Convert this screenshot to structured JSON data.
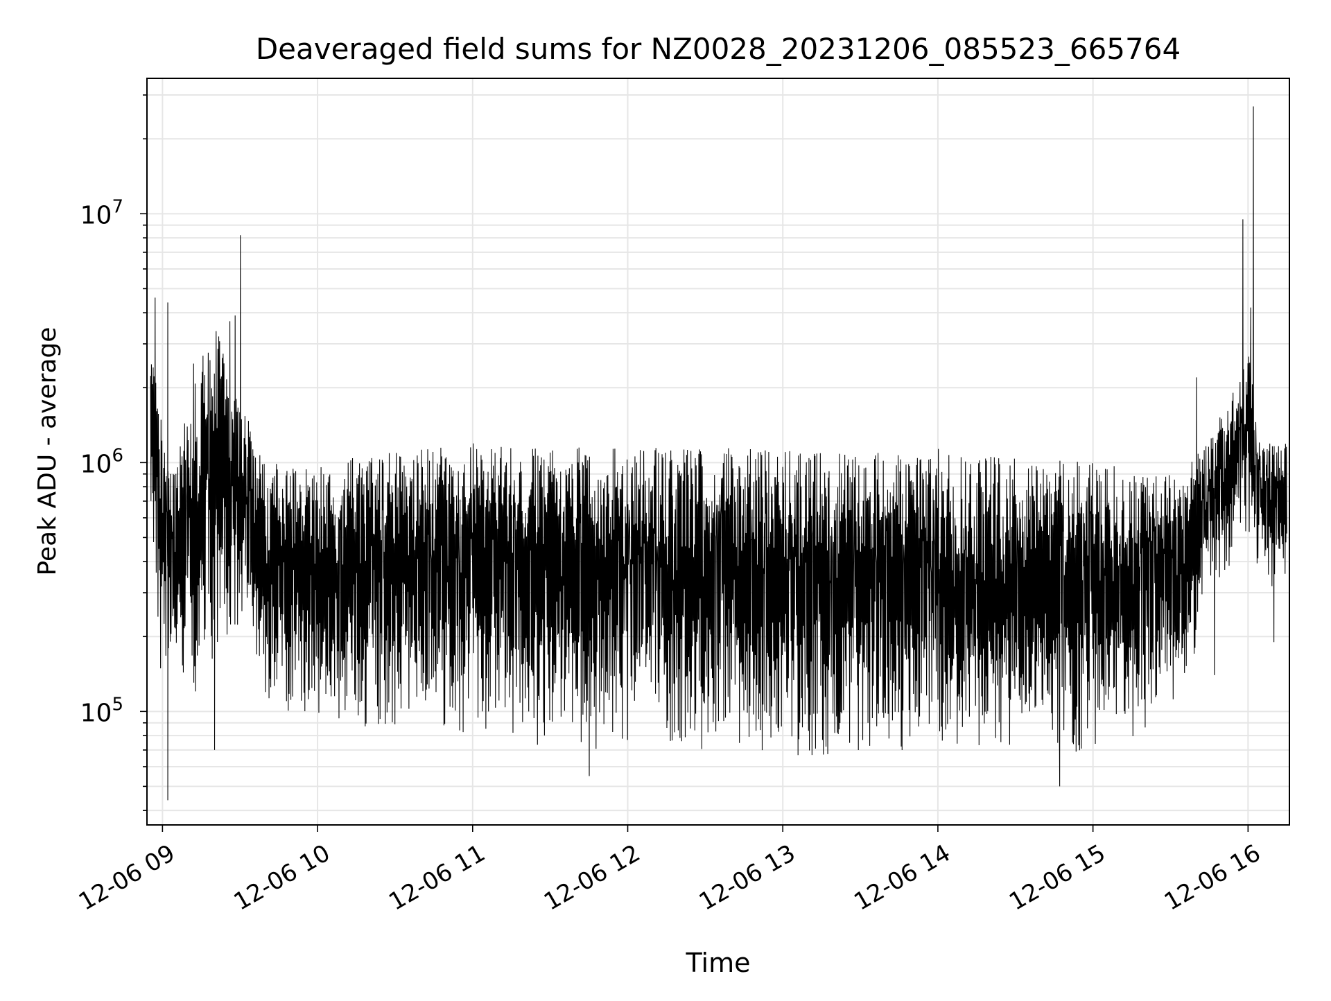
{
  "chart_data": {
    "type": "line",
    "title": "Deaveraged field sums for NZ0028_20231206_085523_665764",
    "xlabel": "Time",
    "ylabel": "Peak ADU - average",
    "x_start": "2023-12-06T08:55:23",
    "x_end": "2023-12-06T16:15:00",
    "xlim": [
      "2023-12-06T08:54:00",
      "2023-12-06T16:16:00"
    ],
    "x_ticks": [
      {
        "value": "2023-12-06T09:00",
        "label": "12-06 09"
      },
      {
        "value": "2023-12-06T10:00",
        "label": "12-06 10"
      },
      {
        "value": "2023-12-06T11:00",
        "label": "12-06 11"
      },
      {
        "value": "2023-12-06T12:00",
        "label": "12-06 12"
      },
      {
        "value": "2023-12-06T13:00",
        "label": "12-06 13"
      },
      {
        "value": "2023-12-06T14:00",
        "label": "12-06 14"
      },
      {
        "value": "2023-12-06T15:00",
        "label": "12-06 15"
      },
      {
        "value": "2023-12-06T16:00",
        "label": "12-06 16"
      }
    ],
    "y_scale": "log",
    "ylim": [
      35000,
      35000000
    ],
    "y_ticks": [
      {
        "value": 100000,
        "base": "10",
        "exp": "5"
      },
      {
        "value": 1000000,
        "base": "10",
        "exp": "6"
      },
      {
        "value": 10000000,
        "base": "10",
        "exp": "7"
      }
    ],
    "grid": true,
    "line_color": "#000000",
    "grid_color": "#e6e6e6",
    "envelope": [
      {
        "t": "2023-12-06T08:55",
        "lo": 700000,
        "hi": 4700000
      },
      {
        "t": "2023-12-06T09:00",
        "lo": 110000,
        "hi": 1300000
      },
      {
        "t": "2023-12-06T09:05",
        "lo": 150000,
        "hi": 900000
      },
      {
        "t": "2023-12-06T09:10",
        "lo": 100000,
        "hi": 1900000
      },
      {
        "t": "2023-12-06T09:20",
        "lo": 150000,
        "hi": 3700000
      },
      {
        "t": "2023-12-06T09:30",
        "lo": 200000,
        "hi": 1800000
      },
      {
        "t": "2023-12-06T09:40",
        "lo": 110000,
        "hi": 1000000
      },
      {
        "t": "2023-12-06T10:00",
        "lo": 85000,
        "hi": 1000000
      },
      {
        "t": "2023-12-06T10:30",
        "lo": 80000,
        "hi": 1100000
      },
      {
        "t": "2023-12-06T11:00",
        "lo": 80000,
        "hi": 1200000
      },
      {
        "t": "2023-12-06T11:30",
        "lo": 70000,
        "hi": 1150000
      },
      {
        "t": "2023-12-06T12:00",
        "lo": 70000,
        "hi": 1150000
      },
      {
        "t": "2023-12-06T12:30",
        "lo": 68000,
        "hi": 1150000
      },
      {
        "t": "2023-12-06T13:00",
        "lo": 65000,
        "hi": 1150000
      },
      {
        "t": "2023-12-06T13:30",
        "lo": 65000,
        "hi": 1100000
      },
      {
        "t": "2023-12-06T14:00",
        "lo": 65000,
        "hi": 1150000
      },
      {
        "t": "2023-12-06T14:30",
        "lo": 68000,
        "hi": 1100000
      },
      {
        "t": "2023-12-06T15:00",
        "lo": 65000,
        "hi": 1000000
      },
      {
        "t": "2023-12-06T15:35",
        "lo": 100000,
        "hi": 900000
      },
      {
        "t": "2023-12-06T15:45",
        "lo": 300000,
        "hi": 1300000
      },
      {
        "t": "2023-12-06T15:55",
        "lo": 400000,
        "hi": 2000000
      },
      {
        "t": "2023-12-06T16:00",
        "lo": 500000,
        "hi": 3000000
      },
      {
        "t": "2023-12-06T16:05",
        "lo": 300000,
        "hi": 1200000
      },
      {
        "t": "2023-12-06T16:15",
        "lo": 300000,
        "hi": 1200000
      }
    ],
    "spikes": [
      {
        "t": "2023-12-06T08:57",
        "y": 4600000
      },
      {
        "t": "2023-12-06T09:02",
        "y": 4400000
      },
      {
        "t": "2023-12-06T09:02",
        "y": 44000
      },
      {
        "t": "2023-12-06T09:12",
        "y": 2500000
      },
      {
        "t": "2023-12-06T09:20",
        "y": 70000
      },
      {
        "t": "2023-12-06T09:26",
        "y": 3700000
      },
      {
        "t": "2023-12-06T09:28",
        "y": 3900000
      },
      {
        "t": "2023-12-06T09:30",
        "y": 8200000
      },
      {
        "t": "2023-12-06T11:45",
        "y": 55000
      },
      {
        "t": "2023-12-06T14:47",
        "y": 50000
      },
      {
        "t": "2023-12-06T15:40",
        "y": 2200000
      },
      {
        "t": "2023-12-06T15:47",
        "y": 140000
      },
      {
        "t": "2023-12-06T15:58",
        "y": 9500000
      },
      {
        "t": "2023-12-06T16:01",
        "y": 4200000
      },
      {
        "t": "2023-12-06T16:02",
        "y": 27000000
      },
      {
        "t": "2023-12-06T16:10",
        "y": 190000
      }
    ]
  }
}
